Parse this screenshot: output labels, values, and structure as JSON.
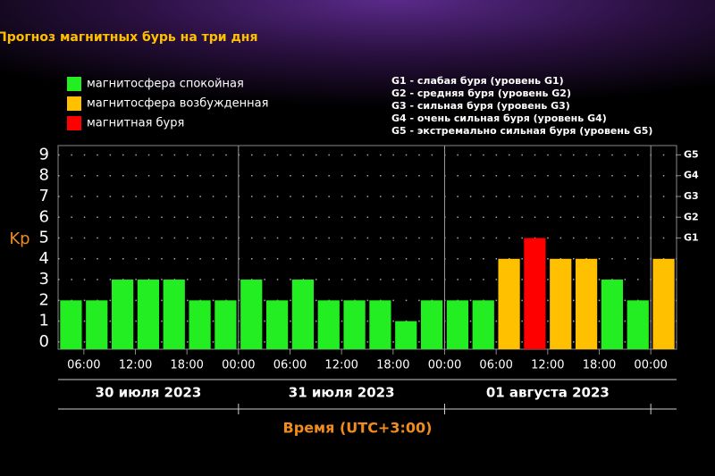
{
  "chart_data": {
    "type": "bar",
    "title": "Прогноз магнитных бурь на три дня",
    "y_label": "Kp",
    "x_label": "Время (UTC+3:00)",
    "legend": [
      {
        "label": "магнитосфера спокойная",
        "color": "#22ee22"
      },
      {
        "label": "магнитосфера возбужденная",
        "color": "#ffc000"
      },
      {
        "label": "магнитная буря",
        "color": "#ff0000"
      }
    ],
    "storm_levels": [
      "G1 - слабая буря (уровень G1)",
      "G2 - средняя буря (уровень G2)",
      "G3 - сильная буря (уровень G3)",
      "G4 - очень сильная буря (уровень G4)",
      "G5 - экстремально сильная буря (уровень G5)"
    ],
    "days": [
      "30 июля 2023",
      "31 июля 2023",
      "01 августа 2023"
    ],
    "x": [
      4.5,
      7.5,
      10.5,
      13.5,
      16.5,
      19.5,
      22.5,
      25.5,
      28.5,
      31.5,
      34.5,
      37.5,
      40.5,
      43.5,
      46.5,
      49.5,
      52.5,
      55.5,
      58.5,
      61.5,
      64.5,
      67.5,
      70.5,
      73.5
    ],
    "values": [
      2,
      2,
      3,
      3,
      3,
      2,
      2,
      3,
      2,
      3,
      2,
      2,
      2,
      1,
      2,
      2,
      2,
      4,
      5,
      4,
      4,
      3,
      2,
      4
    ],
    "colors": [
      "#22ee22",
      "#22ee22",
      "#22ee22",
      "#22ee22",
      "#22ee22",
      "#22ee22",
      "#22ee22",
      "#22ee22",
      "#22ee22",
      "#22ee22",
      "#22ee22",
      "#22ee22",
      "#22ee22",
      "#22ee22",
      "#22ee22",
      "#22ee22",
      "#22ee22",
      "#ffc000",
      "#ff0000",
      "#ffc000",
      "#ffc000",
      "#22ee22",
      "#22ee22",
      "#ffc000"
    ],
    "xlim": [
      3,
      75
    ],
    "xticks": [
      {
        "value": 6,
        "label": "06:00"
      },
      {
        "value": 12,
        "label": "12:00"
      },
      {
        "value": 18,
        "label": "18:00"
      },
      {
        "value": 24,
        "label": "00:00"
      },
      {
        "value": 30,
        "label": "06:00"
      },
      {
        "value": 36,
        "label": "12:00"
      },
      {
        "value": 42,
        "label": "18:00"
      },
      {
        "value": 48,
        "label": "00:00"
      },
      {
        "value": 54,
        "label": "06:00"
      },
      {
        "value": 60,
        "label": "12:00"
      },
      {
        "value": 66,
        "label": "18:00"
      },
      {
        "value": 72,
        "label": "00:00"
      }
    ],
    "ylim": [
      -0.35,
      9.45
    ],
    "yticks": [
      0,
      1,
      2,
      3,
      4,
      5,
      6,
      7,
      8,
      9
    ],
    "y2lim": [
      -0.35,
      9.45
    ],
    "y2ticks": [
      {
        "value": 5,
        "label": "G1"
      },
      {
        "value": 6,
        "label": "G2"
      },
      {
        "value": 7,
        "label": "G3"
      },
      {
        "value": 8,
        "label": "G4"
      },
      {
        "value": 9,
        "label": "G5"
      }
    ],
    "grid": true
  }
}
